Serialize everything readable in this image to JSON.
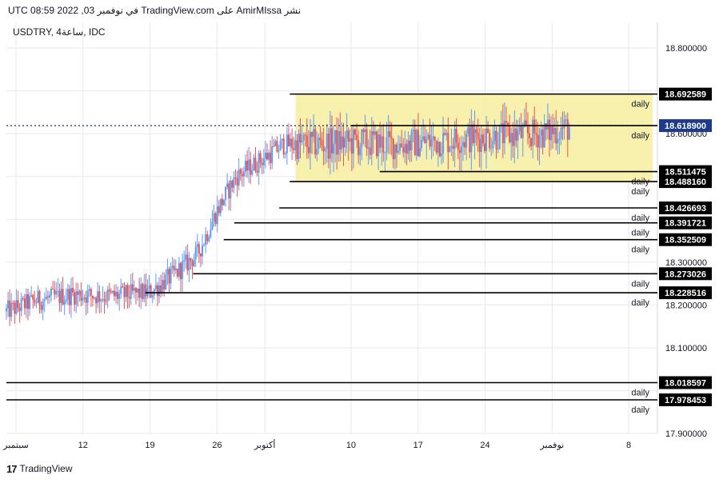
{
  "header": {
    "caption": "نشر AmirMIssa على TradingView.com في نوفمبر 03, 2022 08:59 UTC"
  },
  "footer": {
    "logo_icon": "tradingview-logo-icon",
    "brand": "TradingView"
  },
  "colors": {
    "up": "#5b9cf6",
    "down": "#ef5350",
    "zone_fill": "#f7ef9f",
    "level_line": "#000000",
    "grid": "#e6e9f0",
    "price_dotted": "#1e2a6e",
    "last_price_bg": "#1e3a8a"
  },
  "chart_data": {
    "type": "candlestick",
    "symbol_label": "USDTRY, 4ساعة, IDC",
    "ylim": [
      17.9,
      18.86
    ],
    "y_ticks": [
      "18.800000",
      "18.600000",
      "18.300000",
      "18.200000",
      "18.100000",
      "17.900000"
    ],
    "x_ticks": [
      {
        "label": "سبتمبر",
        "day": 5
      },
      {
        "label": "12",
        "day": 12
      },
      {
        "label": "19",
        "day": 19
      },
      {
        "label": "26",
        "day": 26
      },
      {
        "label": "أكتوبر",
        "day": 31
      },
      {
        "label": "10",
        "day": 40
      },
      {
        "label": "17",
        "day": 47
      },
      {
        "label": "24",
        "day": 54
      },
      {
        "label": "نوفمبر",
        "day": 61
      },
      {
        "label": "8",
        "day": 69
      }
    ],
    "x_range_days": [
      4,
      72
    ],
    "last_price": "18.618900",
    "trend_points": [
      {
        "day": 4.0,
        "price": 18.185
      },
      {
        "day": 7.0,
        "price": 18.21
      },
      {
        "day": 11.0,
        "price": 18.225
      },
      {
        "day": 15.0,
        "price": 18.22
      },
      {
        "day": 19.0,
        "price": 18.23
      },
      {
        "day": 22.0,
        "price": 18.28
      },
      {
        "day": 24.0,
        "price": 18.32
      },
      {
        "day": 26.0,
        "price": 18.42
      },
      {
        "day": 28.0,
        "price": 18.5
      },
      {
        "day": 31.0,
        "price": 18.545
      },
      {
        "day": 33.0,
        "price": 18.575
      },
      {
        "day": 36.0,
        "price": 18.575
      },
      {
        "day": 40.0,
        "price": 18.58
      },
      {
        "day": 45.0,
        "price": 18.575
      },
      {
        "day": 50.0,
        "price": 18.585
      },
      {
        "day": 55.0,
        "price": 18.595
      },
      {
        "day": 60.0,
        "price": 18.6
      },
      {
        "day": 62.8,
        "price": 18.615
      }
    ],
    "zone": {
      "from_day": 34.2,
      "to_day": 71.5,
      "top": "18.692589",
      "bottom": "18.488160"
    },
    "levels": [
      {
        "price": "18.692589",
        "label": "daily",
        "from_day": 33.6
      },
      {
        "price": "18.618900",
        "label": "daily",
        "from_day": 40.0
      },
      {
        "price": "18.511475",
        "label": "daily",
        "from_day": 43.0
      },
      {
        "price": "18.488160",
        "label": "daily",
        "from_day": 33.6
      },
      {
        "price": "18.426693",
        "label": "daily",
        "from_day": 32.5
      },
      {
        "price": "18.391721",
        "label": "daily",
        "from_day": 27.8
      },
      {
        "price": "18.352509",
        "label": "daily",
        "from_day": 26.7
      },
      {
        "price": "18.273026",
        "label": "daily",
        "from_day": 23.5
      },
      {
        "price": "18.228516",
        "label": "daily",
        "from_day": 18.5
      },
      {
        "price": "18.018597",
        "label": "daily",
        "from_day": 4.0
      },
      {
        "price": "17.978453",
        "label": "daily",
        "from_day": 4.0
      }
    ]
  }
}
